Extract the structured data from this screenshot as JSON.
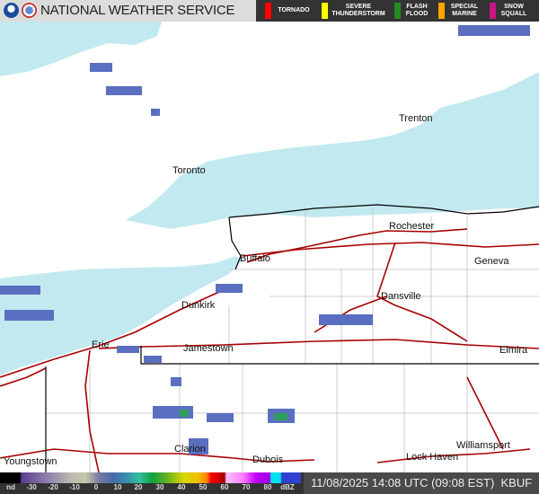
{
  "header": {
    "title": "NATIONAL WEATHER SERVICE",
    "logos": [
      "noaa-logo",
      "nws-logo"
    ]
  },
  "warnings": [
    {
      "label": "TORNADO",
      "color": "#ff0000"
    },
    {
      "label": "SEVERE THUNDERSTORM",
      "color": "#ffff00"
    },
    {
      "label": "FLASH FLOOD",
      "color": "#228b22"
    },
    {
      "label": "SPECIAL MARINE",
      "color": "#ffa500"
    },
    {
      "label": "SNOW SQUALL",
      "color": "#c71585"
    }
  ],
  "cities": [
    "Trenton",
    "Toronto",
    "Rochester",
    "Geneva",
    "Buffalo",
    "Dunkirk",
    "Dansville",
    "Erie",
    "Jamestown",
    "Elmira",
    "Youngstown",
    "Clarion",
    "Dubois",
    "Lock Haven",
    "Williamsport"
  ],
  "colors": {
    "water": "#c2e9f0",
    "road": "#a80000",
    "border": "#000000",
    "county": "#cccccc",
    "radar": "#5a6fc0"
  },
  "legend": {
    "ticks": [
      "nd",
      "-30",
      "-20",
      "-10",
      "0",
      "10",
      "20",
      "30",
      "40",
      "50",
      "60",
      "70",
      "80",
      "dBZ"
    ]
  },
  "footer": {
    "timestamp": "11/08/2025 14:08 UTC (09:08 EST)",
    "station": "KBUF"
  }
}
